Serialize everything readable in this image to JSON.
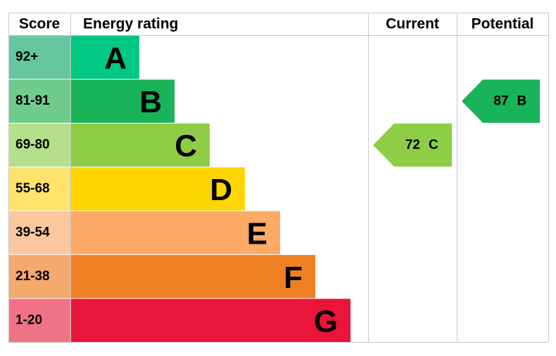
{
  "header": {
    "score": "Score",
    "energy_rating": "Energy rating",
    "current": "Current",
    "potential": "Potential"
  },
  "bands": [
    {
      "score": "92+",
      "letter": "A",
      "color": "#00c781",
      "score_color": "#64c7a2"
    },
    {
      "score": "81-91",
      "letter": "B",
      "color": "#19b459",
      "score_color": "#70cb8f"
    },
    {
      "score": "69-80",
      "letter": "C",
      "color": "#8dce46",
      "score_color": "#b6df8b"
    },
    {
      "score": "55-68",
      "letter": "D",
      "color": "#ffd500",
      "score_color": "#ffe36b"
    },
    {
      "score": "39-54",
      "letter": "E",
      "color": "#fcaa65",
      "score_color": "#fdc8a0"
    },
    {
      "score": "21-38",
      "letter": "F",
      "color": "#ef8023",
      "score_color": "#f4a96f"
    },
    {
      "score": "1-20",
      "letter": "G",
      "color": "#e9153b",
      "score_color": "#f07388"
    }
  ],
  "current": {
    "value": 72,
    "letter": "C"
  },
  "potential": {
    "value": 87,
    "letter": "B"
  }
}
